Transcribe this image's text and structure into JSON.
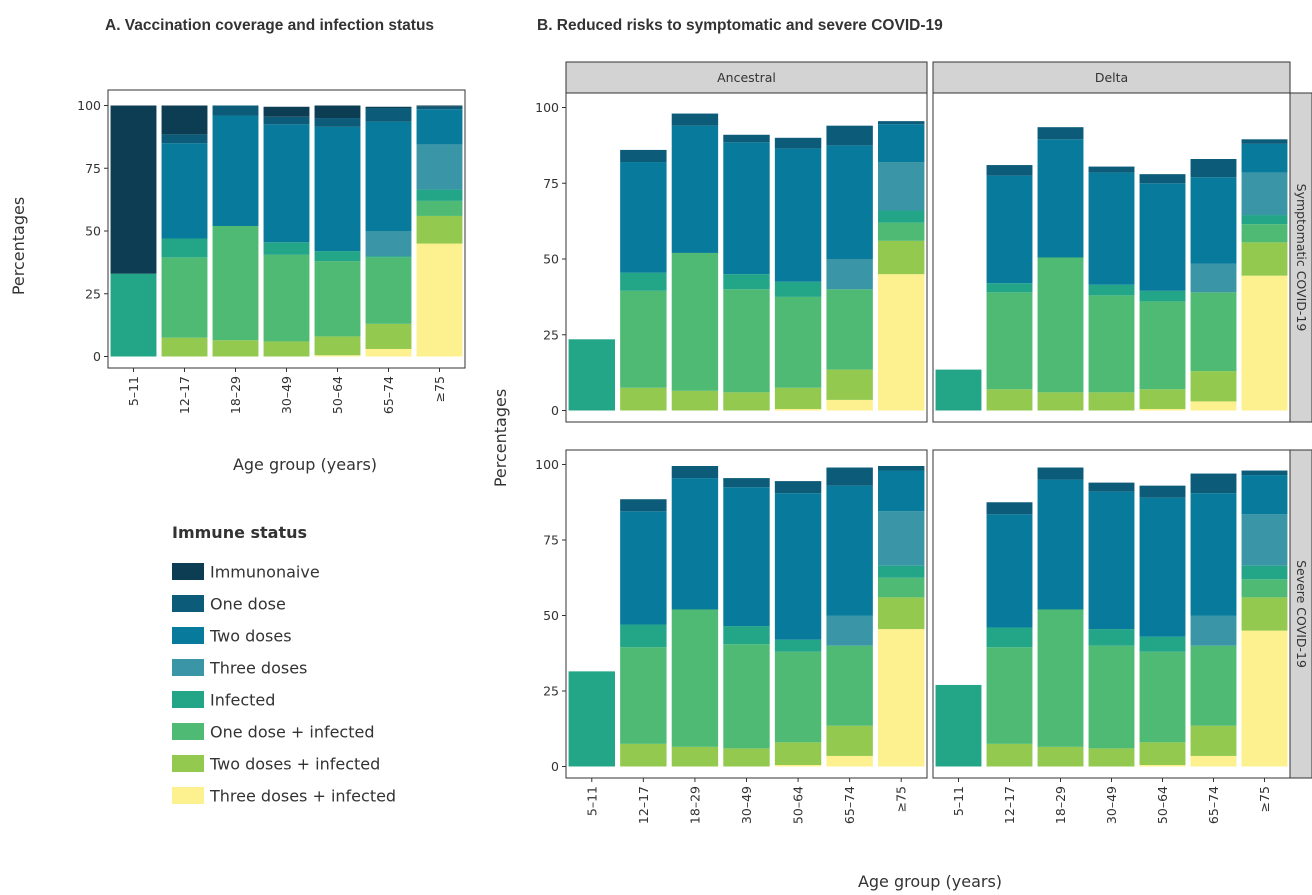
{
  "chart_data": [
    {
      "id": "A",
      "type": "bar",
      "stacked": true,
      "title": "A. Vaccination coverage and infection status",
      "xlabel": "Age group (years)",
      "ylabel": "Percentages",
      "ylim": [
        0,
        100
      ],
      "yticks": [
        0,
        25,
        50,
        75,
        100
      ],
      "categories": [
        "5–11",
        "12–17",
        "18–29",
        "30–49",
        "50–64",
        "65–74",
        "≥75"
      ],
      "series": [
        {
          "name": "Three doses + infected",
          "values": [
            0,
            0,
            0,
            0,
            0.5,
            3,
            45
          ]
        },
        {
          "name": "Two doses + infected",
          "values": [
            0,
            7.5,
            6.5,
            6,
            7.5,
            10,
            11
          ]
        },
        {
          "name": "One dose + infected",
          "values": [
            0,
            32,
            45.5,
            34.5,
            30,
            26.5,
            6
          ]
        },
        {
          "name": "Infected",
          "values": [
            33,
            7.5,
            0,
            5,
            4,
            0.5,
            4.5
          ]
        },
        {
          "name": "Three doses",
          "values": [
            0,
            0,
            0,
            0,
            0,
            10,
            18
          ]
        },
        {
          "name": "Two doses",
          "values": [
            0,
            38,
            44,
            47,
            49.5,
            43.5,
            14
          ]
        },
        {
          "name": "One dose",
          "values": [
            0,
            3.5,
            4,
            3,
            3.5,
            5.5,
            1
          ]
        },
        {
          "name": "Immunonaive",
          "values": [
            67,
            11.5,
            0,
            4,
            5,
            0.5,
            0.5
          ]
        }
      ]
    },
    {
      "id": "B",
      "type": "bar",
      "stacked": true,
      "title": "B. Reduced risks to symptomatic and severe COVID-19",
      "xlabel": "Age group (years)",
      "ylabel": "Percentages",
      "ylim": [
        0,
        100
      ],
      "yticks": [
        0,
        25,
        50,
        75,
        100
      ],
      "categories": [
        "5–11",
        "12–17",
        "18–29",
        "30–49",
        "50–64",
        "65–74",
        "≥75"
      ],
      "columns": [
        "Ancestral",
        "Delta"
      ],
      "rows": [
        "Symptomatic COVID-19",
        "Severe COVID-19"
      ],
      "series_names": [
        "Three doses + infected",
        "Two doses + infected",
        "One dose + infected",
        "Infected",
        "Three doses",
        "Two doses",
        "One dose"
      ],
      "panels": [
        {
          "column": "Ancestral",
          "row": "Symptomatic COVID-19",
          "values": [
            [
              0,
              0,
              0,
              0,
              0.5,
              3.5,
              45
            ],
            [
              0,
              7.5,
              6.5,
              6,
              7,
              10,
              11
            ],
            [
              0,
              32,
              45.5,
              34,
              30,
              26.5,
              6
            ],
            [
              23.5,
              6,
              0,
              5,
              5,
              0,
              4
            ],
            [
              0,
              0,
              0,
              0,
              0,
              10,
              16
            ],
            [
              0,
              36.5,
              42,
              43.5,
              44,
              37.5,
              12.5
            ],
            [
              0,
              4,
              4,
              2.5,
              3.5,
              6.5,
              1
            ]
          ]
        },
        {
          "column": "Delta",
          "row": "Symptomatic COVID-19",
          "values": [
            [
              0,
              0,
              0,
              0,
              0.5,
              3,
              44.5
            ],
            [
              0,
              7,
              6,
              6,
              6.5,
              10,
              11
            ],
            [
              0,
              32,
              44.5,
              32,
              29,
              26,
              6
            ],
            [
              13.5,
              3,
              0,
              3.5,
              3.5,
              0,
              3
            ],
            [
              0,
              0,
              0,
              0,
              0,
              9.5,
              14
            ],
            [
              0,
              35.5,
              39,
              37,
              35.5,
              28.5,
              9.5
            ],
            [
              0,
              3.5,
              4,
              2,
              3,
              6,
              1.5
            ]
          ]
        },
        {
          "column": "Ancestral",
          "row": "Severe COVID-19",
          "values": [
            [
              0,
              0,
              0,
              0,
              0.5,
              3.5,
              45.5
            ],
            [
              0,
              7.5,
              6.5,
              6,
              7.5,
              10,
              10.5
            ],
            [
              0,
              32,
              45.5,
              34.5,
              30,
              26.5,
              6.5
            ],
            [
              31.5,
              7.5,
              0,
              6,
              4,
              0,
              4
            ],
            [
              0,
              0,
              0,
              0,
              0,
              10,
              18
            ],
            [
              0,
              37.5,
              43.5,
              46,
              48.5,
              43,
              13.5
            ],
            [
              0,
              4,
              4,
              3,
              4,
              6,
              1.5
            ]
          ]
        },
        {
          "column": "Delta",
          "row": "Severe COVID-19",
          "values": [
            [
              0,
              0,
              0,
              0,
              0.5,
              3.5,
              45
            ],
            [
              0,
              7.5,
              6.5,
              6,
              7.5,
              10,
              11
            ],
            [
              0,
              32,
              45.5,
              34,
              30,
              26.5,
              6
            ],
            [
              27,
              6.5,
              0,
              5.5,
              5,
              0,
              4.5
            ],
            [
              0,
              0,
              0,
              0,
              0,
              10,
              17
            ],
            [
              0,
              37.5,
              43,
              45.5,
              46,
              40.5,
              13
            ],
            [
              0,
              4,
              4,
              3,
              4,
              6.5,
              1.5
            ]
          ]
        }
      ]
    }
  ],
  "legend": {
    "title": "Immune status",
    "items": [
      "Immunonaive",
      "One dose",
      "Two doses",
      "Three doses",
      "Infected",
      "One dose + infected",
      "Two doses + infected",
      "Three doses + infected"
    ]
  },
  "colors": {
    "Immunonaive": "#0d3d52",
    "One dose": "#0b5b79",
    "Two doses": "#087a9c",
    "Three doses": "#3a96a6",
    "Infected": "#23a587",
    "One dose + infected": "#4fba74",
    "Two doses + infected": "#93c94f",
    "Three doses + infected": "#fdf08f",
    "strip": "#d3d3d3"
  }
}
